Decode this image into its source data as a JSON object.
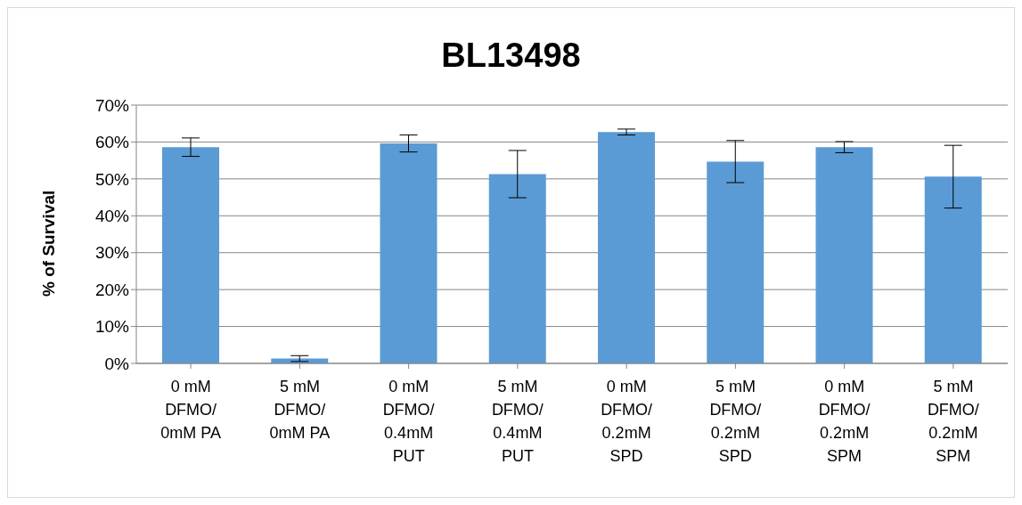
{
  "chart_data": {
    "type": "bar",
    "title": "BL13498",
    "ylabel": "% of Survival",
    "categories": [
      "0 mM\nDFMO/\n0mM PA",
      "5 mM\nDFMO/\n0mM PA",
      "0 mM\nDFMO/\n0.4mM\nPUT",
      "5 mM\nDFMO/\n0.4mM\nPUT",
      "0 mM\nDFMO/\n0.2mM\nSPD",
      "5 mM\nDFMO/\n0.2mM\nSPD",
      "0 mM\nDFMO/\n0.2mM\nSPM",
      "5 mM\nDFMO/\n0.2mM\nSPM"
    ],
    "values": [
      58.6,
      1.3,
      59.6,
      51.3,
      62.7,
      54.7,
      58.6,
      50.6
    ],
    "errors": [
      2.5,
      0.8,
      2.3,
      6.4,
      0.8,
      5.7,
      1.5,
      8.5
    ],
    "color": "#5b9bd5",
    "ylim": [
      0,
      70
    ],
    "yticks": [
      {
        "value": 0,
        "label": "0%"
      },
      {
        "value": 10,
        "label": "10%"
      },
      {
        "value": 20,
        "label": "20%"
      },
      {
        "value": 30,
        "label": "30%"
      },
      {
        "value": 40,
        "label": "40%"
      },
      {
        "value": 50,
        "label": "50%"
      },
      {
        "value": 60,
        "label": "60%"
      },
      {
        "value": 70,
        "label": "70%"
      }
    ],
    "grid": "y",
    "legend": false
  }
}
